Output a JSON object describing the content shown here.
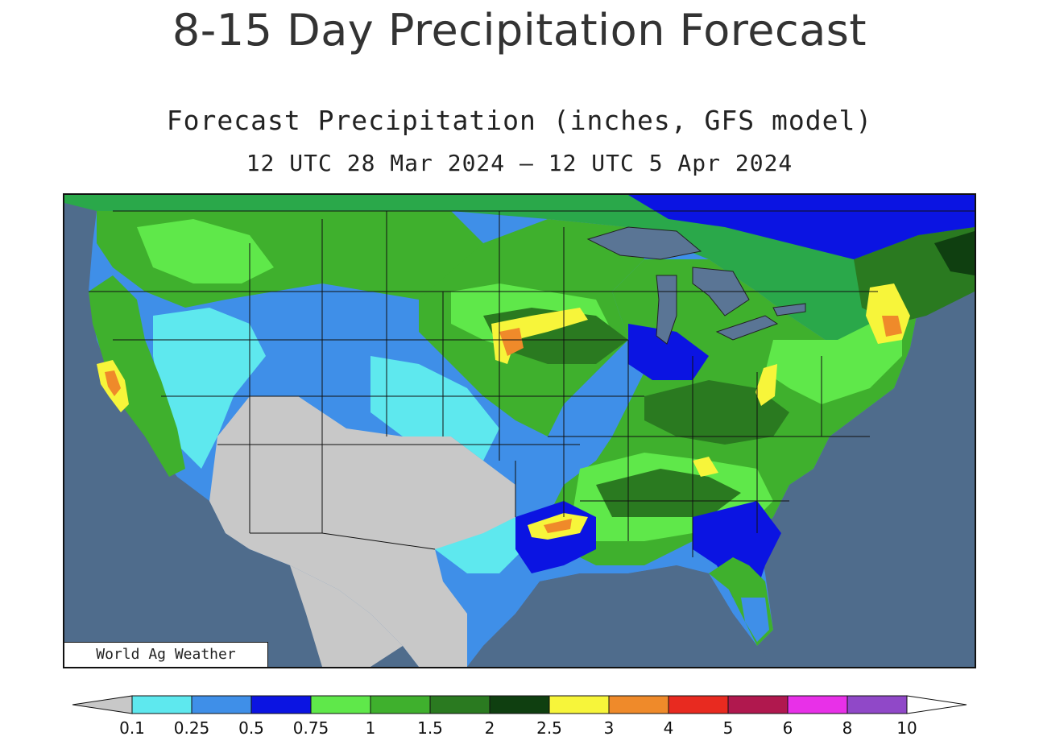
{
  "page": {
    "title": "8-15 Day Precipitation Forecast"
  },
  "map": {
    "title": "Forecast Precipitation (inches, GFS model)",
    "date_range": "12 UTC 28 Mar 2024 — 12 UTC 5 Apr 2024",
    "credit": "World Ag Weather",
    "colors": {
      "ocean": "#4f6c8c",
      "lakes": "#5a7595",
      "no_precip": "#c8c8c8"
    }
  },
  "legend": {
    "ticks": [
      "0.1",
      "0.25",
      "0.5",
      "0.75",
      "1",
      "1.5",
      "2",
      "2.5",
      "3",
      "4",
      "5",
      "6",
      "8",
      "10"
    ],
    "colors": [
      "#5ee8ee",
      "#3f8fe8",
      "#0b14e2",
      "#5fe84a",
      "#3fb02d",
      "#2a7a20",
      "#0f3f10",
      "#f7f53a",
      "#ef8a2a",
      "#e82a20",
      "#b0184e",
      "#e830e8",
      "#9048c8"
    ],
    "below_color": "#c8c8c8",
    "above_color": "#ffffff"
  }
}
